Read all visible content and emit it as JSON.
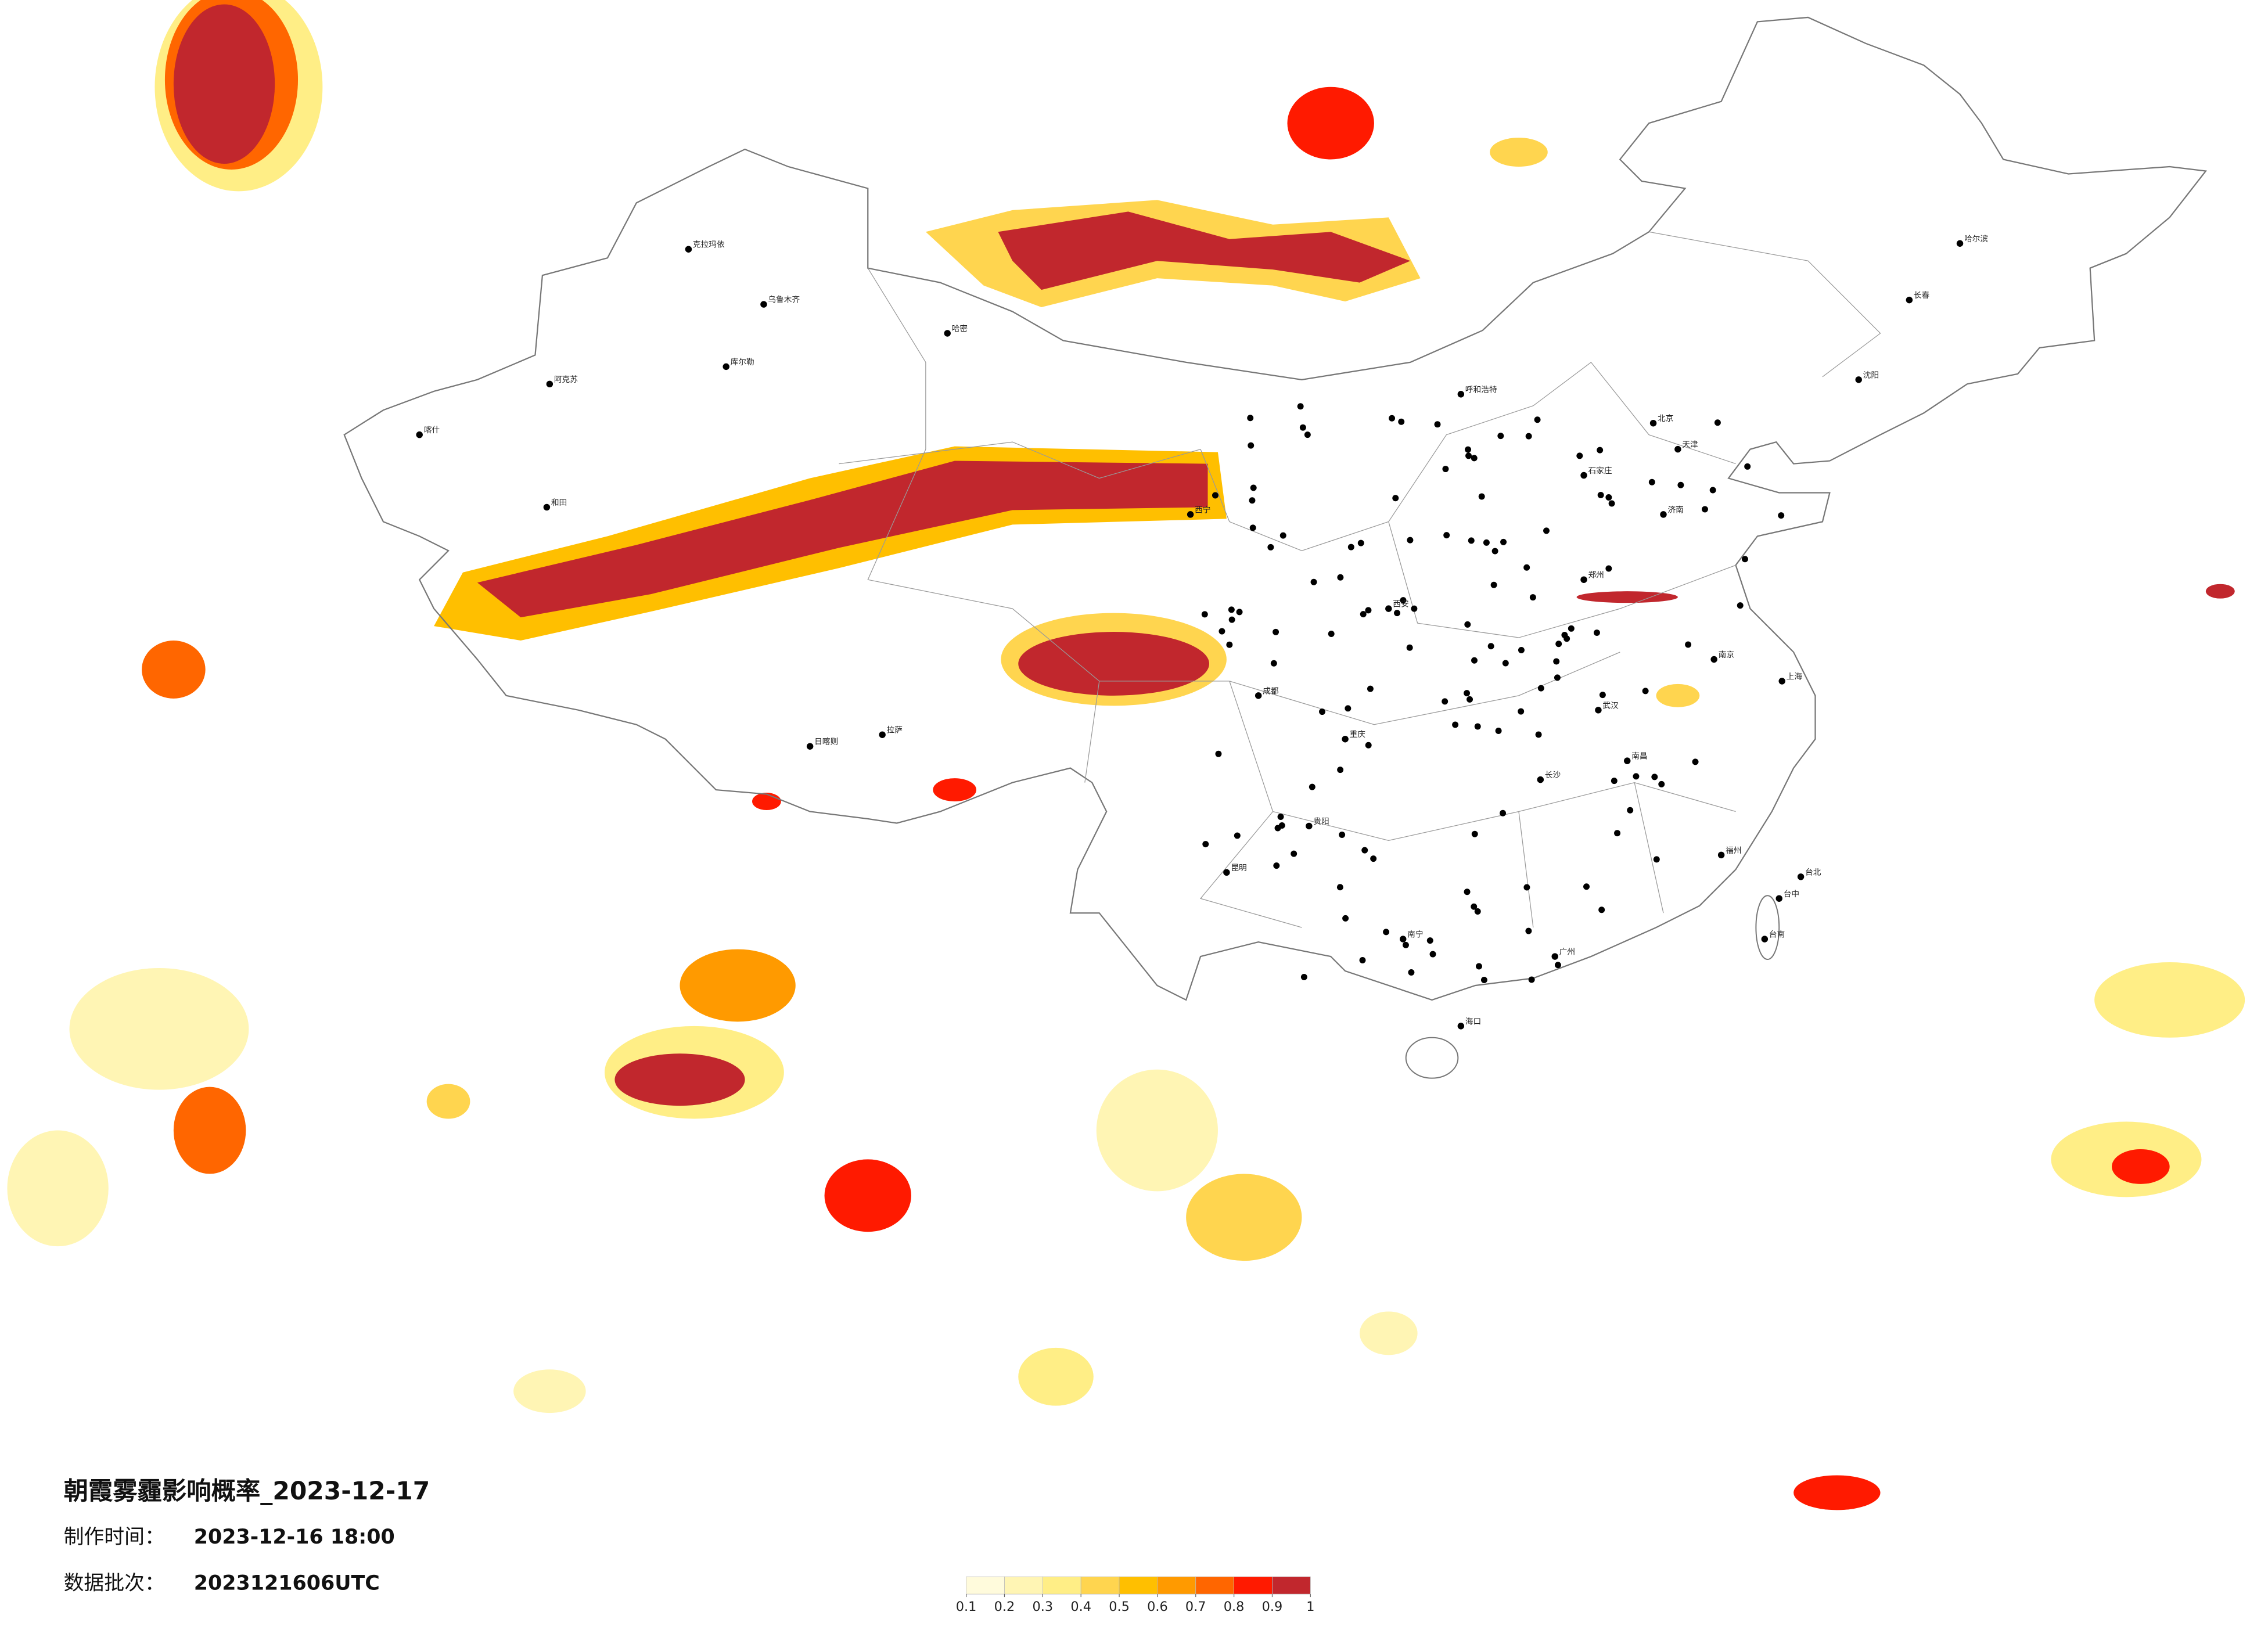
{
  "header": {
    "title": "朝霞雾霾影响概率_2023-12-17",
    "made_time_label": "制作时间：",
    "made_time": "2023-12-16 18:00",
    "batch_label": "数据批次：",
    "batch": "2023121606UTC"
  },
  "colorbar": {
    "colors": [
      "#fffbdc",
      "#fff5b4",
      "#ffee86",
      "#ffd54f",
      "#ffbf00",
      "#ff9a00",
      "#ff6600",
      "#ff1a00",
      "#c1272d"
    ],
    "ticks": [
      0.1,
      0.2,
      0.3,
      0.4,
      0.5,
      0.6,
      0.7,
      0.8,
      0.9,
      1
    ]
  },
  "cities": [
    "克拉玛依",
    "乌鲁木齐",
    "哈密",
    "库尔勒",
    "阿克苏",
    "喀什",
    "和田",
    "日喀则",
    "拉萨",
    "呼和浩特",
    "哈尔滨",
    "长春",
    "沈阳",
    "北京",
    "天津",
    "石家庄",
    "济南",
    "郑州",
    "武汉",
    "南京",
    "上海",
    "南昌",
    "长沙",
    "贵阳",
    "昆明",
    "南宁",
    "广州",
    "福州",
    "海口",
    "台北",
    "台中",
    "台南",
    "西宁",
    "成都",
    "重庆",
    "西安"
  ]
}
